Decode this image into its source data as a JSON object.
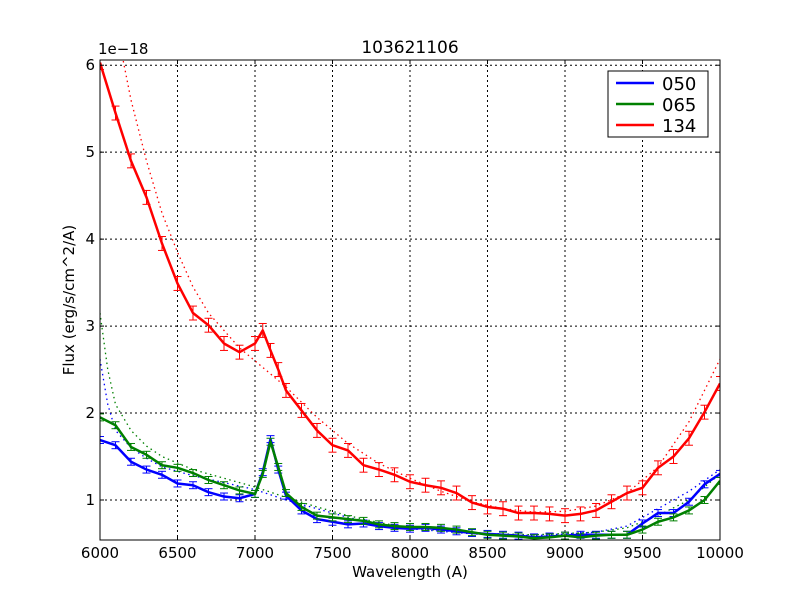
{
  "chart_data": {
    "type": "line",
    "title": "103621106",
    "xlabel": "Wavelength (A)",
    "ylabel": "Flux (erg/s/cm^2/A)",
    "offset_label": "1e−18",
    "xlim": [
      6000,
      10000
    ],
    "ylim": [
      0.54,
      6.06
    ],
    "xticks": [
      6000,
      6500,
      7000,
      7500,
      8000,
      8500,
      9000,
      9500,
      10000
    ],
    "yticks": [
      1,
      2,
      3,
      4,
      5,
      6
    ],
    "grid": true,
    "legend_position": "top-right",
    "x": [
      6000,
      6100,
      6200,
      6300,
      6400,
      6500,
      6600,
      6700,
      6800,
      6900,
      7000,
      7050,
      7100,
      7150,
      7200,
      7300,
      7400,
      7500,
      7600,
      7700,
      7800,
      7900,
      8000,
      8100,
      8200,
      8300,
      8400,
      8500,
      8600,
      8700,
      8800,
      8900,
      9000,
      9100,
      9200,
      9300,
      9400,
      9500,
      9600,
      9700,
      9800,
      9900,
      10000
    ],
    "series": [
      {
        "name": "050",
        "color": "#0000ff",
        "yerr": 0.04,
        "values": [
          1.69,
          1.63,
          1.44,
          1.35,
          1.29,
          1.19,
          1.17,
          1.09,
          1.04,
          1.02,
          1.07,
          1.32,
          1.7,
          1.35,
          1.05,
          0.88,
          0.78,
          0.75,
          0.72,
          0.73,
          0.7,
          0.68,
          0.67,
          0.68,
          0.66,
          0.64,
          0.62,
          0.61,
          0.6,
          0.59,
          0.57,
          0.58,
          0.59,
          0.6,
          0.6,
          0.6,
          0.6,
          0.73,
          0.85,
          0.85,
          0.98,
          1.18,
          1.3
        ],
        "model_x": [
          6000,
          6050,
          6100,
          6200,
          6300,
          6400,
          6600,
          6800,
          7000,
          7200,
          7400,
          7600,
          7800,
          8000,
          8400,
          8800,
          9200,
          9400,
          9600,
          9800,
          10000
        ],
        "model": [
          2.62,
          2.1,
          1.8,
          1.6,
          1.48,
          1.38,
          1.28,
          1.2,
          1.12,
          1.0,
          0.9,
          0.8,
          0.72,
          0.67,
          0.61,
          0.59,
          0.63,
          0.7,
          0.9,
          1.1,
          1.35
        ]
      },
      {
        "name": "065",
        "color": "#008000",
        "yerr": 0.04,
        "values": [
          1.95,
          1.86,
          1.61,
          1.52,
          1.4,
          1.37,
          1.31,
          1.23,
          1.17,
          1.11,
          1.07,
          1.3,
          1.67,
          1.38,
          1.08,
          0.92,
          0.82,
          0.8,
          0.78,
          0.76,
          0.72,
          0.7,
          0.69,
          0.69,
          0.68,
          0.66,
          0.63,
          0.6,
          0.59,
          0.58,
          0.56,
          0.57,
          0.59,
          0.57,
          0.59,
          0.6,
          0.6,
          0.66,
          0.75,
          0.8,
          0.88,
          1.0,
          1.22
        ],
        "model_x": [
          6000,
          6050,
          6100,
          6200,
          6300,
          6400,
          6600,
          6800,
          7000,
          7200,
          7400,
          7600,
          7800,
          8000,
          8400,
          8800,
          9200,
          9400,
          9600,
          9800,
          10000
        ],
        "model": [
          3.15,
          2.5,
          2.1,
          1.8,
          1.62,
          1.5,
          1.35,
          1.25,
          1.15,
          1.03,
          0.92,
          0.82,
          0.74,
          0.68,
          0.62,
          0.6,
          0.63,
          0.68,
          0.82,
          1.0,
          1.3
        ]
      },
      {
        "name": "134",
        "color": "#ff0000",
        "yerr": 0.08,
        "values": [
          6.03,
          5.45,
          4.9,
          4.48,
          3.95,
          3.49,
          3.15,
          3.01,
          2.8,
          2.7,
          2.8,
          2.95,
          2.72,
          2.5,
          2.26,
          2.03,
          1.8,
          1.63,
          1.57,
          1.4,
          1.35,
          1.29,
          1.21,
          1.17,
          1.14,
          1.08,
          0.97,
          0.92,
          0.9,
          0.85,
          0.85,
          0.84,
          0.82,
          0.84,
          0.88,
          0.98,
          1.08,
          1.14,
          1.37,
          1.5,
          1.71,
          2.01,
          2.34
        ],
        "model_x": [
          6100,
          6200,
          6300,
          6400,
          6500,
          6600,
          6700,
          6800,
          6900,
          7000,
          7100,
          7200,
          7400,
          7600,
          7800,
          8000,
          8200,
          8400,
          8600,
          8800,
          9000,
          9200,
          9400,
          9600,
          9800,
          10000
        ],
        "model": [
          6.5,
          5.6,
          4.9,
          4.3,
          3.85,
          3.45,
          3.15,
          2.95,
          2.75,
          2.6,
          2.45,
          2.3,
          1.95,
          1.65,
          1.42,
          1.25,
          1.1,
          0.98,
          0.9,
          0.86,
          0.87,
          0.93,
          1.08,
          1.38,
          1.9,
          2.62
        ]
      }
    ]
  }
}
